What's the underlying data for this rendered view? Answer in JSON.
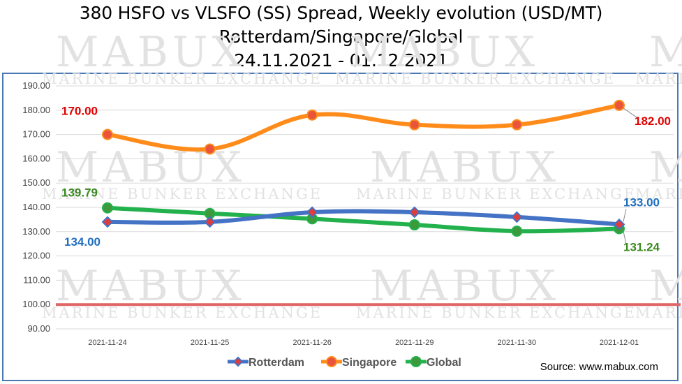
{
  "title": {
    "line1": "380 HSFO vs VLSFO (SS) Spread, Weekly evolution (USD/MT)",
    "line2": "Rotterdam/Singapore/Global",
    "line3": "24.11.2021 - 01.12.2021"
  },
  "watermark": {
    "big": "MABUX",
    "small": "MARINE BUNKER EXCHANGE"
  },
  "source": "Source: www.mabux.com",
  "colors": {
    "frame": "#4a78b5",
    "grid": "#d9d9d9",
    "reference_line": "#e06666",
    "rotterdam": "#4472c4",
    "rotterdam_marker": "#e03c3c",
    "singapore": "#ff8c1a",
    "singapore_marker": "#e8553a",
    "global": "#22b14c",
    "global_marker": "#3c9a3c",
    "label_red": "#e00000",
    "label_blue": "#1f6fc0",
    "label_green": "#3a8a20"
  },
  "chart_data": {
    "type": "line",
    "categories": [
      "2021-11-24",
      "2021-11-25",
      "2021-11-26",
      "2021-11-29",
      "2021-11-30",
      "2021-12-01"
    ],
    "ylim": [
      90,
      190
    ],
    "y_ticks": [
      "190.00",
      "180.00",
      "170.00",
      "160.00",
      "150.00",
      "140.00",
      "130.00",
      "120.00",
      "110.00",
      "100.00",
      "90.00"
    ],
    "grid": true,
    "legend_position": "bottom",
    "reference_line": 100,
    "series": [
      {
        "name": "Rotterdam",
        "values": [
          134.0,
          134.0,
          138.0,
          138.0,
          136.0,
          133.0
        ],
        "marker": "diamond"
      },
      {
        "name": "Singapore",
        "values": [
          170.0,
          164.0,
          178.0,
          174.0,
          174.0,
          182.0
        ],
        "marker": "circle"
      },
      {
        "name": "Global",
        "values": [
          139.79,
          137.5,
          135.3,
          132.8,
          130.2,
          131.24
        ],
        "marker": "circle"
      }
    ],
    "data_labels": [
      {
        "series": "Singapore",
        "index": 0,
        "text": "170.00"
      },
      {
        "series": "Singapore",
        "index": 5,
        "text": "182.00"
      },
      {
        "series": "Global",
        "index": 0,
        "text": "139.79"
      },
      {
        "series": "Global",
        "index": 5,
        "text": "131.24"
      },
      {
        "series": "Rotterdam",
        "index": 0,
        "text": "134.00"
      },
      {
        "series": "Rotterdam",
        "index": 5,
        "text": "133.00"
      }
    ]
  }
}
